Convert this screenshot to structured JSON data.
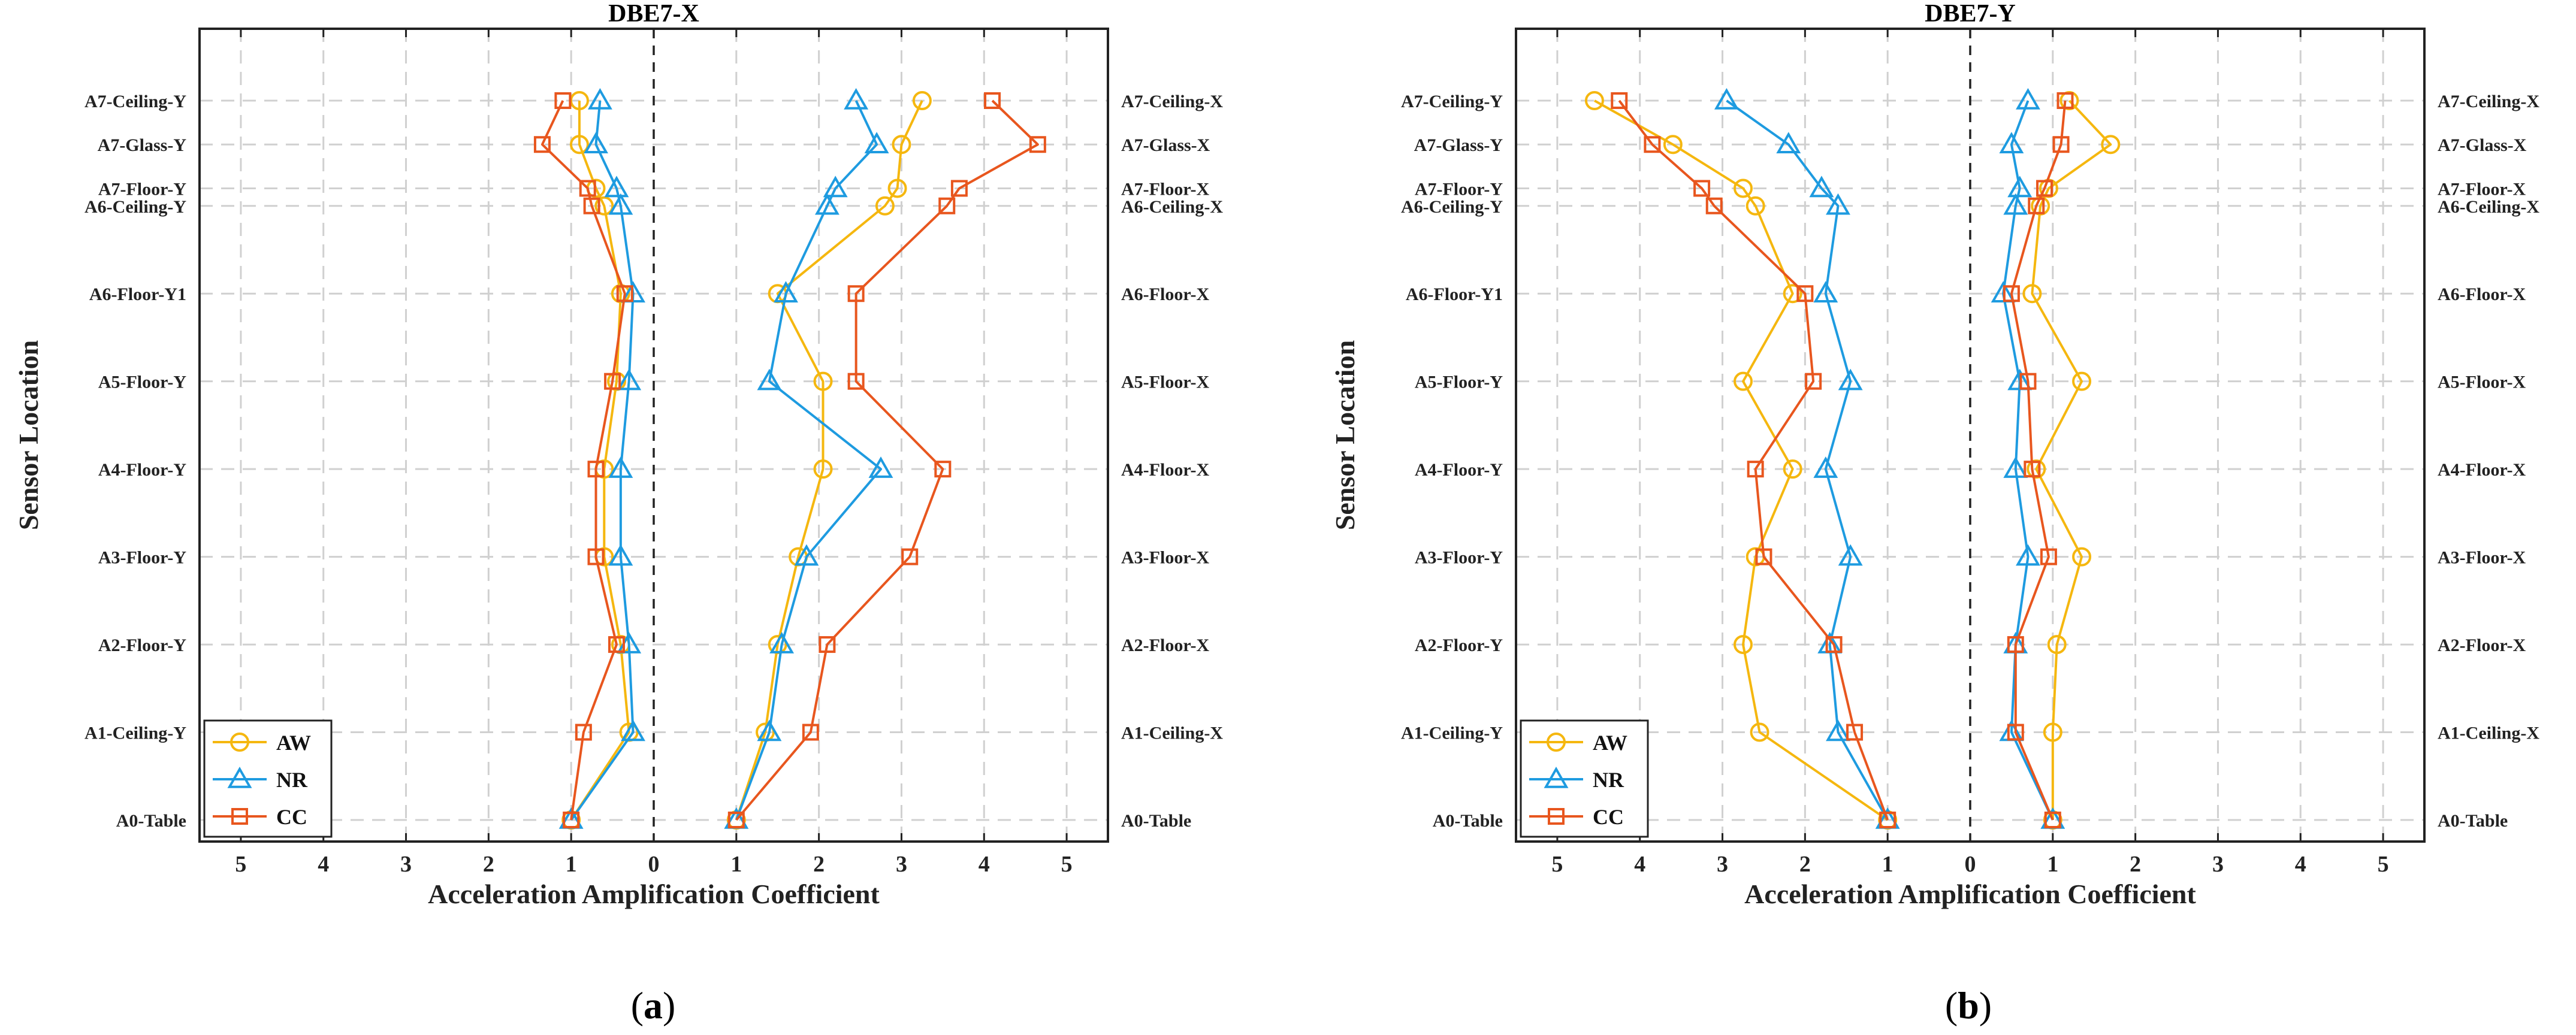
{
  "chart_data": [
    {
      "type": "line",
      "id": "a",
      "caption_letter": "a",
      "title": "DBE7-X",
      "xlabel": "Acceleration Amplification Coefficient",
      "ylabel": "Sensor Location",
      "x_tick_labels": [
        "5",
        "4",
        "3",
        "2",
        "1",
        "0",
        "1",
        "2",
        "3",
        "4",
        "5"
      ],
      "xlim_left": [
        5.5,
        0
      ],
      "xlim_right": [
        0,
        5.5
      ],
      "levels": [
        0,
        1,
        2,
        3,
        4,
        5,
        6,
        7,
        7.2,
        7.7,
        8.2
      ],
      "left_labels": [
        "A0-Table",
        "A1-Ceiling-Y",
        "A2-Floor-Y",
        "A3-Floor-Y",
        "A4-Floor-Y",
        "A5-Floor-Y",
        "A6-Floor-Y1",
        "A6-Ceiling-Y",
        "A7-Floor-Y",
        "A7-Glass-Y",
        "A7-Ceiling-Y"
      ],
      "right_labels": [
        "A0-Table",
        "A1-Ceiling-X",
        "A2-Floor-X",
        "A3-Floor-X",
        "A4-Floor-X",
        "A5-Floor-X",
        "A6-Floor-X",
        "A6-Ceiling-X",
        "A7-Floor-X",
        "A7-Glass-X",
        "A7-Ceiling-X"
      ],
      "legend": [
        "AW",
        "NR",
        "CC"
      ],
      "series": [
        {
          "name": "AW",
          "color": "#F5B70F",
          "marker": "circle",
          "left_values": [
            1.0,
            0.3,
            0.4,
            0.6,
            0.6,
            0.45,
            0.4,
            0.6,
            0.7,
            0.9,
            0.9
          ],
          "right_values": [
            1.0,
            1.35,
            1.5,
            1.75,
            2.05,
            2.05,
            1.5,
            2.8,
            2.95,
            3.0,
            3.25
          ]
        },
        {
          "name": "NR",
          "color": "#1E9BE0",
          "marker": "triangle",
          "left_values": [
            1.0,
            0.25,
            0.3,
            0.4,
            0.4,
            0.3,
            0.25,
            0.4,
            0.45,
            0.7,
            0.65
          ],
          "right_values": [
            1.0,
            1.4,
            1.55,
            1.85,
            2.75,
            1.4,
            1.6,
            2.1,
            2.2,
            2.7,
            2.45
          ]
        },
        {
          "name": "CC",
          "color": "#E8561E",
          "marker": "square",
          "left_values": [
            1.0,
            0.85,
            0.45,
            0.7,
            0.7,
            0.5,
            0.35,
            0.75,
            0.8,
            1.35,
            1.1
          ],
          "right_values": [
            1.0,
            1.9,
            2.1,
            3.1,
            3.5,
            2.45,
            2.45,
            3.55,
            3.7,
            4.65,
            4.1
          ]
        }
      ]
    },
    {
      "type": "line",
      "id": "b",
      "caption_letter": "b",
      "title": "DBE7-Y",
      "xlabel": "Acceleration Amplification Coefficient",
      "ylabel": "Sensor Location",
      "x_tick_labels": [
        "5",
        "4",
        "3",
        "2",
        "1",
        "0",
        "1",
        "2",
        "3",
        "4",
        "5"
      ],
      "xlim_left": [
        5.5,
        0
      ],
      "xlim_right": [
        0,
        5.5
      ],
      "levels": [
        0,
        1,
        2,
        3,
        4,
        5,
        6,
        7,
        7.2,
        7.7,
        8.2
      ],
      "left_labels": [
        "A0-Table",
        "A1-Ceiling-Y",
        "A2-Floor-Y",
        "A3-Floor-Y",
        "A4-Floor-Y",
        "A5-Floor-Y",
        "A6-Floor-Y1",
        "A6-Ceiling-Y",
        "A7-Floor-Y",
        "A7-Glass-Y",
        "A7-Ceiling-Y"
      ],
      "right_labels": [
        "A0-Table",
        "A1-Ceiling-X",
        "A2-Floor-X",
        "A3-Floor-X",
        "A4-Floor-X",
        "A5-Floor-X",
        "A6-Floor-X",
        "A6-Ceiling-X",
        "A7-Floor-X",
        "A7-Glass-X",
        "A7-Ceiling-X"
      ],
      "legend": [
        "AW",
        "NR",
        "CC"
      ],
      "series": [
        {
          "name": "AW",
          "color": "#F5B70F",
          "marker": "circle",
          "left_values": [
            1.0,
            2.55,
            2.75,
            2.6,
            2.15,
            2.75,
            2.15,
            2.6,
            2.75,
            3.6,
            4.55
          ],
          "right_values": [
            1.0,
            1.0,
            1.05,
            1.35,
            0.8,
            1.35,
            0.75,
            0.85,
            0.95,
            1.7,
            1.2
          ]
        },
        {
          "name": "NR",
          "color": "#1E9BE0",
          "marker": "triangle",
          "left_values": [
            1.0,
            1.6,
            1.7,
            1.45,
            1.75,
            1.45,
            1.75,
            1.6,
            1.8,
            2.2,
            2.95
          ],
          "right_values": [
            1.0,
            0.5,
            0.55,
            0.7,
            0.55,
            0.6,
            0.4,
            0.55,
            0.6,
            0.5,
            0.7
          ]
        },
        {
          "name": "CC",
          "color": "#E8561E",
          "marker": "square",
          "left_values": [
            1.0,
            1.4,
            1.65,
            2.5,
            2.6,
            1.9,
            2.0,
            3.1,
            3.25,
            3.85,
            4.25
          ],
          "right_values": [
            1.0,
            0.55,
            0.55,
            0.95,
            0.75,
            0.7,
            0.5,
            0.8,
            0.9,
            1.1,
            1.15
          ]
        }
      ]
    }
  ]
}
